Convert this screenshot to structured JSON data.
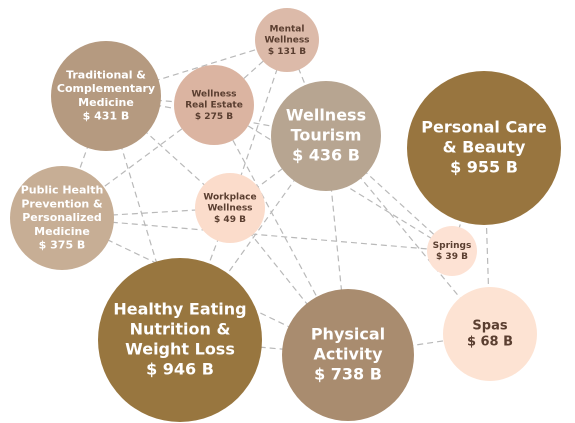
{
  "nodes": [
    {
      "label": [
        "Mental",
        "Wellness"
      ],
      "value": "$ 131 B"
    },
    {
      "label": [
        "Traditional &",
        "Complementary",
        "Medicine"
      ],
      "value": "$ 431 B"
    },
    {
      "label": [
        "Wellness",
        "Real Estate"
      ],
      "value": "$ 275 B"
    },
    {
      "label": [
        "Wellness",
        "Tourism"
      ],
      "value": "$ 436 B"
    },
    {
      "label": [
        "Personal Care",
        "& Beauty"
      ],
      "value": "$ 955 B"
    },
    {
      "label": [
        "Public Health",
        "Prevention &",
        "Personalized",
        "Medicine"
      ],
      "value": "$ 375 B"
    },
    {
      "label": [
        "Workplace",
        "Wellness"
      ],
      "value": "$ 49 B"
    },
    {
      "label": [
        "Springs"
      ],
      "value": "$ 39 B"
    },
    {
      "label": [
        "Healthy Eating",
        "Nutrition &",
        "Weight Loss"
      ],
      "value": "$ 946 B"
    },
    {
      "label": [
        "Physical",
        "Activity"
      ],
      "value": "$ 738 B"
    },
    {
      "label": [
        "Spas"
      ],
      "value": "$ 68 B"
    }
  ]
}
